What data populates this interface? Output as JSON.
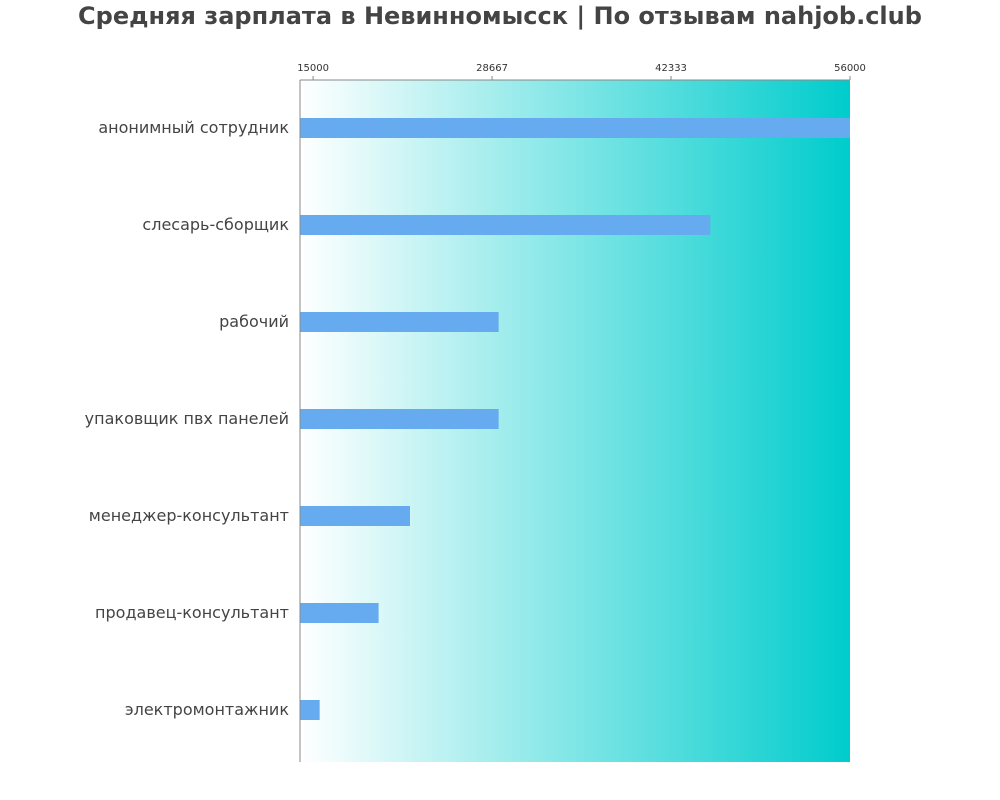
{
  "chart_data": {
    "type": "bar",
    "orientation": "horizontal",
    "title": "Средняя зарплата в Невинномысск | По отзывам nahjob.club",
    "xlabel": "",
    "ylabel": "",
    "categories": [
      "анонимный сотрудник",
      "слесарь-сборщик",
      "рабочий",
      "упаковщик пвх панелей",
      "менеджер-консультант",
      "продавец-консультант",
      "электромонтажник"
    ],
    "values": [
      56000,
      45333,
      29167,
      29167,
      22400,
      20000,
      15500
    ],
    "xlim": [
      14000,
      56000
    ],
    "xticks": [
      15000,
      28667,
      42333,
      56000
    ],
    "xtick_labels": [
      "15000",
      "28667",
      "42333",
      "56000"
    ],
    "axis_position": "top",
    "grid": false,
    "bar_color": "#66aaf0",
    "background_gradient": [
      "#ffffff",
      "#00cccc"
    ],
    "axis_color": "#888888"
  }
}
